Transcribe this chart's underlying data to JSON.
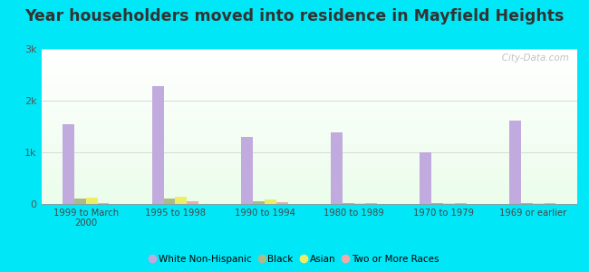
{
  "title": "Year householders moved into residence in Mayfield Heights",
  "categories": [
    "1999 to March\n2000",
    "1995 to 1998",
    "1990 to 1994",
    "1980 to 1989",
    "1970 to 1979",
    "1969 or earlier"
  ],
  "series": {
    "White Non-Hispanic": [
      1550,
      2280,
      1300,
      1380,
      1000,
      1620
    ],
    "Black": [
      100,
      100,
      45,
      20,
      15,
      20
    ],
    "Asian": [
      130,
      145,
      80,
      25,
      10,
      20
    ],
    "Two or More Races": [
      20,
      50,
      30,
      20,
      10,
      10
    ]
  },
  "colors": {
    "White Non-Hispanic": "#c0aade",
    "Black": "#aabb88",
    "Asian": "#eeee66",
    "Two or More Races": "#f0aaaa"
  },
  "bar_width": 0.13,
  "ylim": [
    0,
    3000
  ],
  "yticks": [
    0,
    1000,
    2000,
    3000
  ],
  "ytick_labels": [
    "0",
    "1k",
    "2k",
    "3k"
  ],
  "outer_background": "#00e8f8",
  "title_fontsize": 12.5,
  "watermark": "   City-Data.com"
}
